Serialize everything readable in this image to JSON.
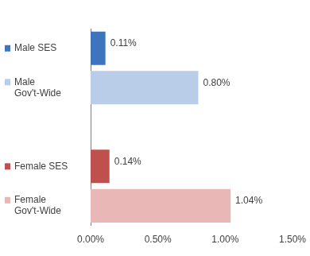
{
  "chart_data": {
    "type": "bar",
    "orientation": "horizontal",
    "categories": [
      "Male SES",
      "Male Gov't-Wide",
      null,
      "Female SES",
      "Female Gov't-Wide"
    ],
    "values": [
      0.11,
      0.8,
      null,
      0.14,
      1.04
    ],
    "value_labels": [
      "0.11%",
      "0.80%",
      null,
      "0.14%",
      "1.04%"
    ],
    "colors": [
      "#3e74bd",
      "#b9cde8",
      null,
      "#c0504d",
      "#e8b7b6"
    ],
    "xlim": [
      0,
      1.5
    ],
    "xticks": [
      {
        "value": 0,
        "label": "0.00%"
      },
      {
        "value": 0.5,
        "label": "0.50%"
      },
      {
        "value": 1,
        "label": "1.00%"
      },
      {
        "value": 1.5,
        "label": "1.50%"
      }
    ],
    "data_labels": true,
    "grid": false
  }
}
